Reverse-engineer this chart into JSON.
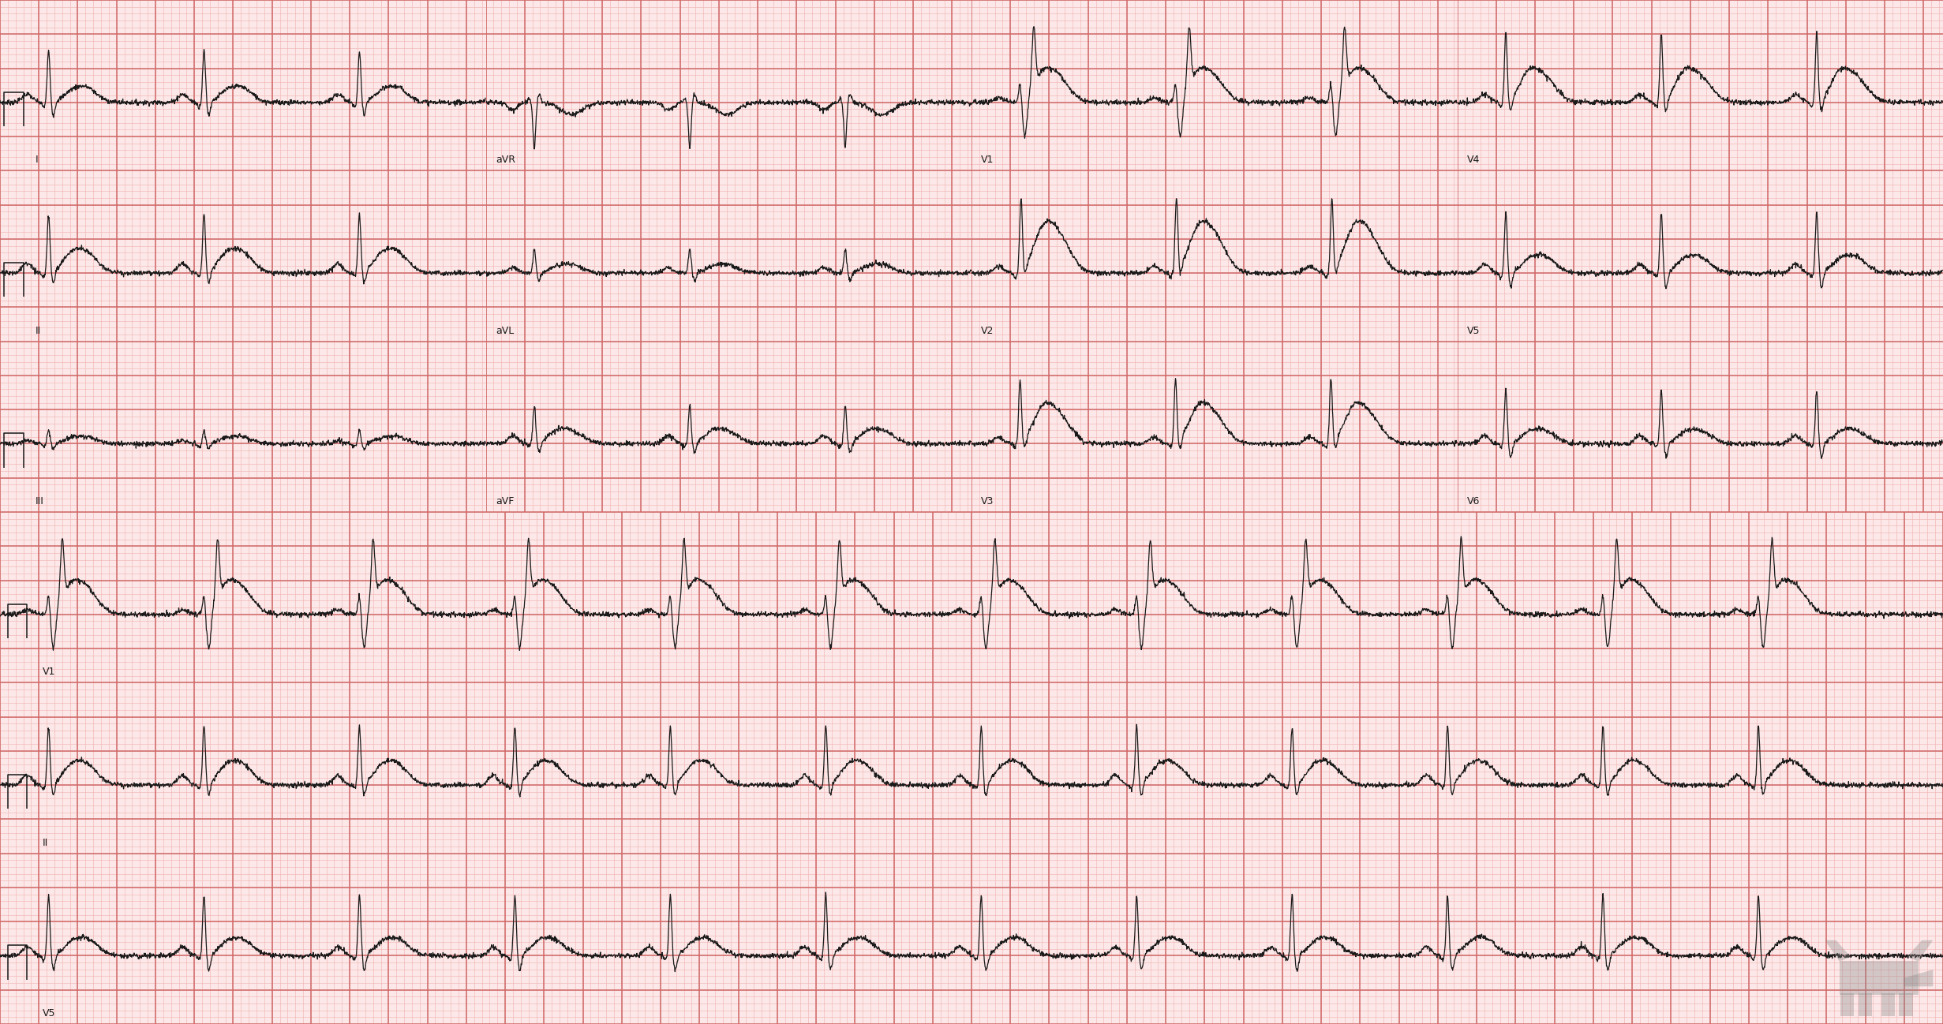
{
  "background_color": "#fce8e8",
  "grid_minor_color": "#f0b0b0",
  "grid_major_color": "#d06868",
  "ecg_color": "#1a1a1a",
  "label_color": "#1a1a1a",
  "fig_width": 24.62,
  "fig_height": 12.98,
  "dpi": 100,
  "heart_rate": 75,
  "sample_rate": 500,
  "duration_long": 10.0,
  "duration_seg": 2.5,
  "lead_rows_top": [
    [
      "I",
      "aVR",
      "V1",
      "V4"
    ],
    [
      "II",
      "aVL",
      "V2",
      "V5"
    ],
    [
      "III",
      "aVF",
      "V3",
      "V6"
    ]
  ],
  "long_strips": [
    "V1",
    "II",
    "V5"
  ],
  "ylim": [
    -1.0,
    1.5
  ],
  "noise_std": 0.018,
  "lw_ecg": 0.9,
  "lw_major": 1.1,
  "lw_minor": 0.4,
  "label_fontsize": 9
}
